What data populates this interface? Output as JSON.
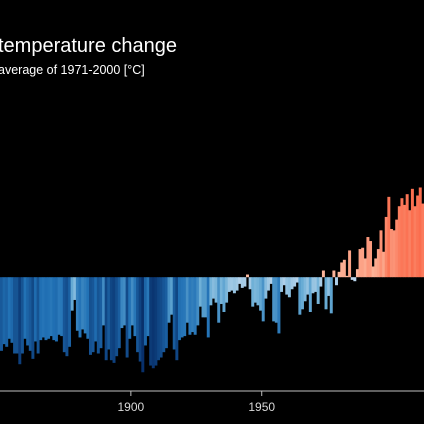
{
  "chart_data": {
    "type": "bar",
    "title": "temperature change",
    "subtitle": "average of 1971-2000  [°C]",
    "xlabel": "",
    "ylabel": "",
    "x_tick_labels": [
      "1900",
      "1950"
    ],
    "xlim": [
      1850,
      2012
    ],
    "ylim": [
      -0.85,
      0.95
    ],
    "grid": false,
    "legend": "none",
    "colors": {
      "background": "#000000",
      "axis": "#bfbfbf",
      "text": "#ffffff",
      "tick_text": "#d9d9d9",
      "warm_light": "#fcbba1",
      "warm": "#fb6a4a",
      "cool_light": "#c6dbef",
      "cool_mid": "#6baed6",
      "cool": "#2171b5",
      "cool_dark": "#08306b"
    },
    "series": [
      {
        "x": [
          1850,
          1851,
          1852,
          1853,
          1854,
          1855,
          1856,
          1857,
          1858,
          1859,
          1860,
          1861,
          1862,
          1863,
          1864,
          1865,
          1866,
          1867,
          1868,
          1869,
          1870,
          1871,
          1872,
          1873,
          1874,
          1875,
          1876,
          1877,
          1878,
          1879,
          1880,
          1881,
          1882,
          1883,
          1884,
          1885,
          1886,
          1887,
          1888,
          1889,
          1890,
          1891,
          1892,
          1893,
          1894,
          1895,
          1896,
          1897,
          1898,
          1899,
          1900,
          1901,
          1902,
          1903,
          1904,
          1905,
          1906,
          1907,
          1908,
          1909,
          1910,
          1911,
          1912,
          1913,
          1914,
          1915,
          1916,
          1917,
          1918,
          1919,
          1920,
          1921,
          1922,
          1923,
          1924,
          1925,
          1926,
          1927,
          1928,
          1929,
          1930,
          1931,
          1932,
          1933,
          1934,
          1935,
          1936,
          1937,
          1938,
          1939,
          1940,
          1941,
          1942,
          1943,
          1944,
          1945,
          1946,
          1947,
          1948,
          1949,
          1950,
          1951,
          1952,
          1953,
          1954,
          1955,
          1956,
          1957,
          1958,
          1959,
          1960,
          1961,
          1962,
          1963,
          1964,
          1965,
          1966,
          1967,
          1968,
          1969,
          1970,
          1971,
          1972,
          1973,
          1974,
          1975,
          1976,
          1977,
          1978,
          1979,
          1980,
          1981,
          1982,
          1983,
          1984,
          1985,
          1986,
          1987,
          1988,
          1989,
          1990,
          1991,
          1992,
          1993,
          1994,
          1995,
          1996,
          1997,
          1998,
          1999,
          2000,
          2001,
          2002,
          2003,
          2004,
          2005,
          2006,
          2007,
          2008,
          2009,
          2010,
          2011,
          2012
        ],
        "values": [
          -0.55,
          -0.5,
          -0.52,
          -0.46,
          -0.49,
          -0.57,
          -0.57,
          -0.65,
          -0.57,
          -0.46,
          -0.51,
          -0.55,
          -0.61,
          -0.48,
          -0.57,
          -0.47,
          -0.45,
          -0.47,
          -0.46,
          -0.44,
          -0.47,
          -0.48,
          -0.43,
          -0.44,
          -0.56,
          -0.59,
          -0.52,
          -0.25,
          -0.17,
          -0.4,
          -0.45,
          -0.39,
          -0.42,
          -0.46,
          -0.58,
          -0.56,
          -0.48,
          -0.57,
          -0.53,
          -0.36,
          -0.62,
          -0.54,
          -0.62,
          -0.64,
          -0.59,
          -0.53,
          -0.38,
          -0.36,
          -0.6,
          -0.46,
          -0.36,
          -0.44,
          -0.56,
          -0.63,
          -0.71,
          -0.51,
          -0.44,
          -0.66,
          -0.68,
          -0.66,
          -0.62,
          -0.6,
          -0.56,
          -0.53,
          -0.34,
          -0.28,
          -0.54,
          -0.62,
          -0.47,
          -0.45,
          -0.44,
          -0.34,
          -0.43,
          -0.41,
          -0.43,
          -0.36,
          -0.22,
          -0.3,
          -0.3,
          -0.45,
          -0.21,
          -0.16,
          -0.19,
          -0.34,
          -0.2,
          -0.26,
          -0.19,
          -0.11,
          -0.1,
          -0.12,
          -0.1,
          -0.05,
          -0.08,
          -0.07,
          0.02,
          -0.09,
          -0.22,
          -0.19,
          -0.21,
          -0.25,
          -0.33,
          -0.16,
          -0.1,
          -0.05,
          -0.33,
          -0.34,
          -0.42,
          -0.11,
          -0.06,
          -0.13,
          -0.15,
          -0.09,
          -0.07,
          -0.04,
          -0.28,
          -0.24,
          -0.18,
          -0.13,
          -0.26,
          -0.12,
          -0.11,
          -0.2,
          -0.07,
          0.05,
          -0.24,
          -0.14,
          -0.27,
          0.05,
          -0.06,
          0.04,
          0.11,
          0.13,
          0.01,
          0.2,
          -0.02,
          -0.03,
          0.06,
          0.21,
          0.22,
          0.14,
          0.3,
          0.27,
          0.08,
          0.14,
          0.21,
          0.35,
          0.19,
          0.45,
          0.6,
          0.36,
          0.35,
          0.43,
          0.53,
          0.59,
          0.54,
          0.62,
          0.5,
          0.66,
          0.53,
          0.61,
          0.67,
          0.55,
          0.58
        ]
      }
    ]
  }
}
